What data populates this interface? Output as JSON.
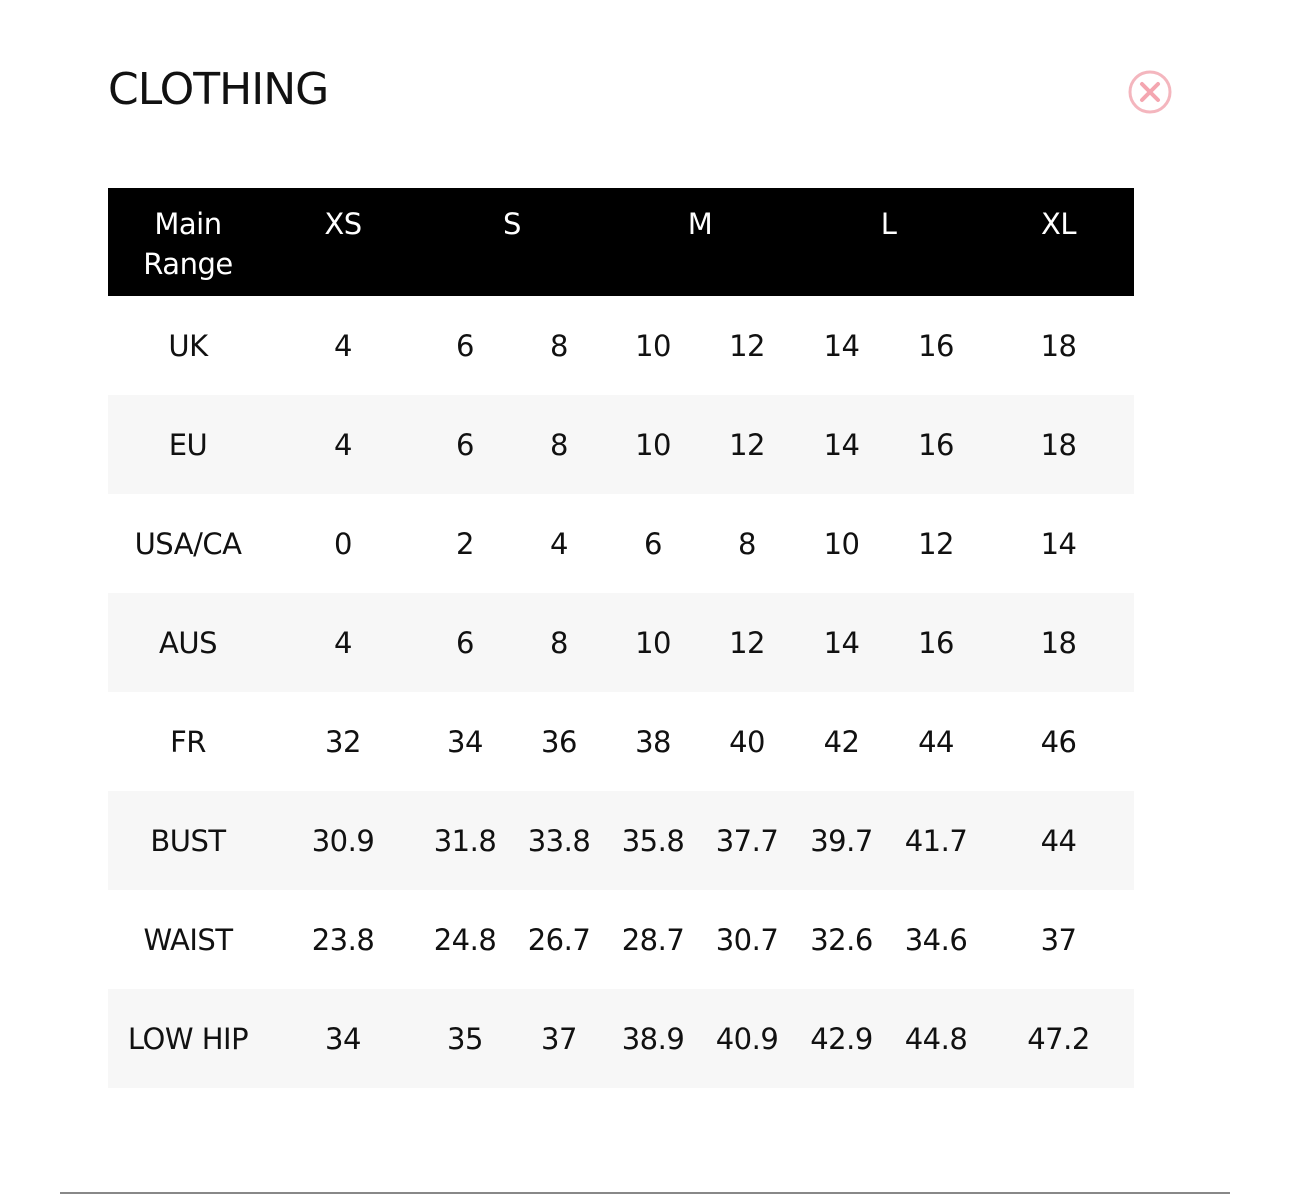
{
  "title": "CLOTHING",
  "close_icon": "close-circle-x-icon",
  "accent_color": "#f4a6b0",
  "header": {
    "label_line1": "Main",
    "label_line2": "Range",
    "groups": [
      {
        "label": "XS",
        "span": 1
      },
      {
        "label": "S",
        "span": 2
      },
      {
        "label": "M",
        "span": 2
      },
      {
        "label": "L",
        "span": 2
      },
      {
        "label": "XL",
        "span": 1
      }
    ]
  },
  "rows": [
    {
      "label": "UK",
      "values": [
        "4",
        "6",
        "8",
        "10",
        "12",
        "14",
        "16",
        "18"
      ]
    },
    {
      "label": "EU",
      "values": [
        "4",
        "6",
        "8",
        "10",
        "12",
        "14",
        "16",
        "18"
      ]
    },
    {
      "label": "USA/CA",
      "values": [
        "0",
        "2",
        "4",
        "6",
        "8",
        "10",
        "12",
        "14"
      ]
    },
    {
      "label": "AUS",
      "values": [
        "4",
        "6",
        "8",
        "10",
        "12",
        "14",
        "16",
        "18"
      ]
    },
    {
      "label": "FR",
      "values": [
        "32",
        "34",
        "36",
        "38",
        "40",
        "42",
        "44",
        "46"
      ]
    },
    {
      "label": "BUST",
      "values": [
        "30.9",
        "31.8",
        "33.8",
        "35.8",
        "37.7",
        "39.7",
        "41.7",
        "44"
      ]
    },
    {
      "label": "WAIST",
      "values": [
        "23.8",
        "24.8",
        "26.7",
        "28.7",
        "30.7",
        "32.6",
        "34.6",
        "37"
      ]
    },
    {
      "label": "LOW HIP",
      "values": [
        "34",
        "35",
        "37",
        "38.9",
        "40.9",
        "42.9",
        "44.8",
        "47.2"
      ]
    }
  ]
}
